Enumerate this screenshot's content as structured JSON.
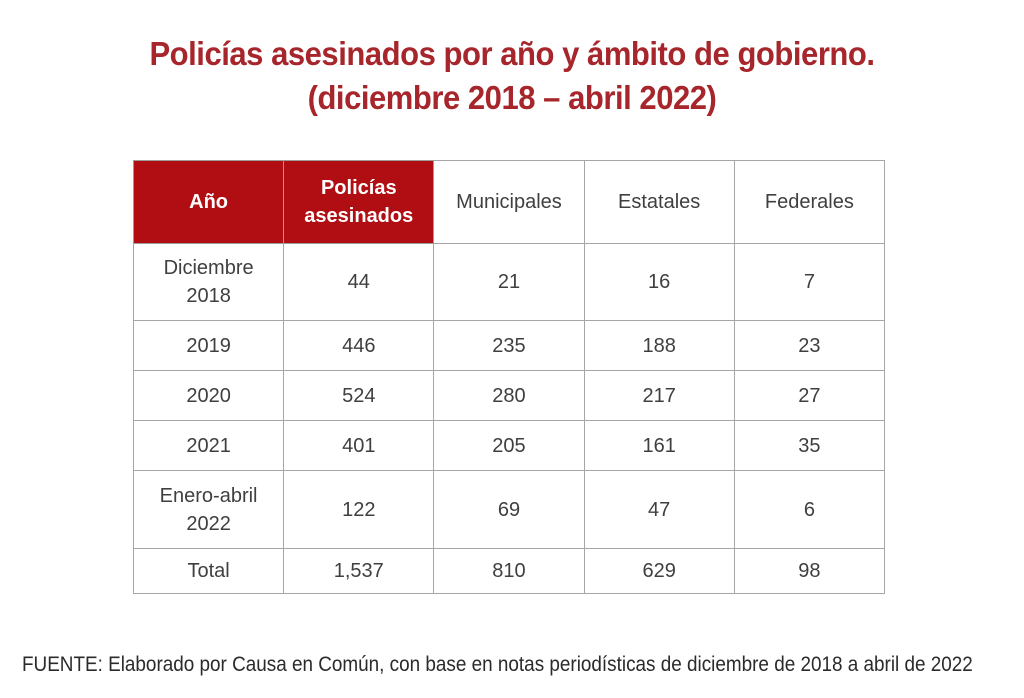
{
  "title": {
    "line1": "Policías asesinados por año y ámbito de gobierno.",
    "line2": "(diciembre 2018 – abril 2022)"
  },
  "table": {
    "columns": [
      {
        "label": "Año",
        "red": true
      },
      {
        "label": "Policías\nasesinados",
        "red": true
      },
      {
        "label": "Municipales",
        "red": false
      },
      {
        "label": "Estatales",
        "red": false
      },
      {
        "label": "Federales",
        "red": false
      }
    ],
    "rows": [
      {
        "cells": [
          "Diciembre\n2018",
          "44",
          "21",
          "16",
          "7"
        ],
        "bold_numbers": false
      },
      {
        "cells": [
          "2019",
          "446",
          "235",
          "188",
          "23"
        ],
        "bold_numbers": false
      },
      {
        "cells": [
          "2020",
          "524",
          "280",
          "217",
          "27"
        ],
        "bold_numbers": false
      },
      {
        "cells": [
          "2021",
          "401",
          "205",
          "161",
          "35"
        ],
        "bold_numbers": false
      },
      {
        "cells": [
          "Enero-abril\n2022",
          "122",
          "69",
          "47",
          "6"
        ],
        "bold_numbers": false
      },
      {
        "cells": [
          "Total",
          "1,537",
          "810",
          "629",
          "98"
        ],
        "bold_numbers": true
      }
    ]
  },
  "footer": {
    "text": "FUENTE: Elaborado por Causa en Común, con base en notas periodísticas de diciembre de 2018 a abril de 2022"
  },
  "colors": {
    "header_red": "#B00E12",
    "title_red": "#A6262C",
    "border_gray": "#A6A6A6",
    "body_text": "#3F3F3F"
  },
  "chart_data": {
    "type": "table",
    "title": "Policías asesinados por año y ámbito de gobierno. (diciembre 2018 – abril 2022)",
    "columns": [
      "Año",
      "Policías asesinados",
      "Municipales",
      "Estatales",
      "Federales"
    ],
    "rows": [
      [
        "Diciembre 2018",
        44,
        21,
        16,
        7
      ],
      [
        "2019",
        446,
        235,
        188,
        23
      ],
      [
        "2020",
        524,
        280,
        217,
        27
      ],
      [
        "2021",
        401,
        205,
        161,
        35
      ],
      [
        "Enero-abril 2022",
        122,
        69,
        47,
        6
      ],
      [
        "Total",
        1537,
        810,
        629,
        98
      ]
    ],
    "highlighted_columns": [
      "Año",
      "Policías asesinados"
    ],
    "source": "FUENTE: Elaborado por Causa en Común, con base en notas periodísticas de diciembre de 2018 a abril de 2022"
  }
}
